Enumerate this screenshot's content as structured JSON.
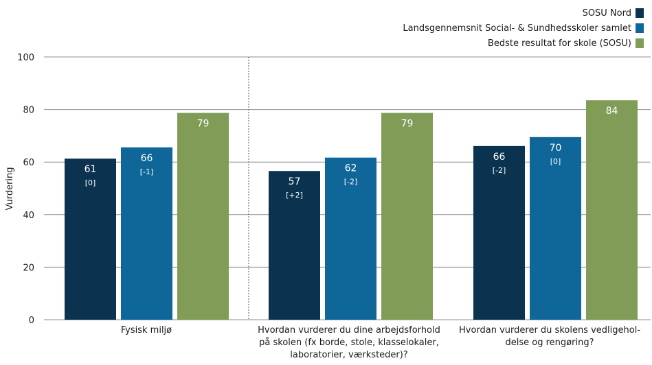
{
  "chart_data": {
    "type": "bar",
    "ylabel": "Vurdering",
    "xlabel": "",
    "ylim": [
      0,
      100
    ],
    "yticks": [
      "0",
      "20",
      "40",
      "60",
      "80",
      "100"
    ],
    "grid": true,
    "legend_position": "top-right",
    "categories": [
      "Fysisk miljø",
      "Hvordan vurderer du dine arbejdsforhold\npå skolen (fx borde, stole, klasselokaler,\nlaboratorier, værksteder)?",
      "Hvordan vurderer du skolens vedligehol-\ndelse og rengøring?"
    ],
    "series": [
      {
        "name": "SOSU Nord",
        "color": "#0b3350",
        "values": [
          61.3,
          56.6,
          66.1
        ],
        "labels": [
          "61",
          "57",
          "66"
        ],
        "sublabels": [
          "[0]",
          "[+2]",
          "[-2]"
        ]
      },
      {
        "name": "Landsgennemsnit Social- & Sundhedsskoler samlet",
        "color": "#0f6699",
        "values": [
          65.6,
          61.7,
          69.5
        ],
        "labels": [
          "66",
          "62",
          "70"
        ],
        "sublabels": [
          "[-1]",
          "[-2]",
          "[0]"
        ]
      },
      {
        "name": "Bedste resultat for skole (SOSU)",
        "color": "#809c57",
        "values": [
          78.7,
          78.7,
          83.5
        ],
        "labels": [
          "79",
          "79",
          "84"
        ],
        "sublabels": [
          "",
          "",
          ""
        ]
      }
    ]
  }
}
